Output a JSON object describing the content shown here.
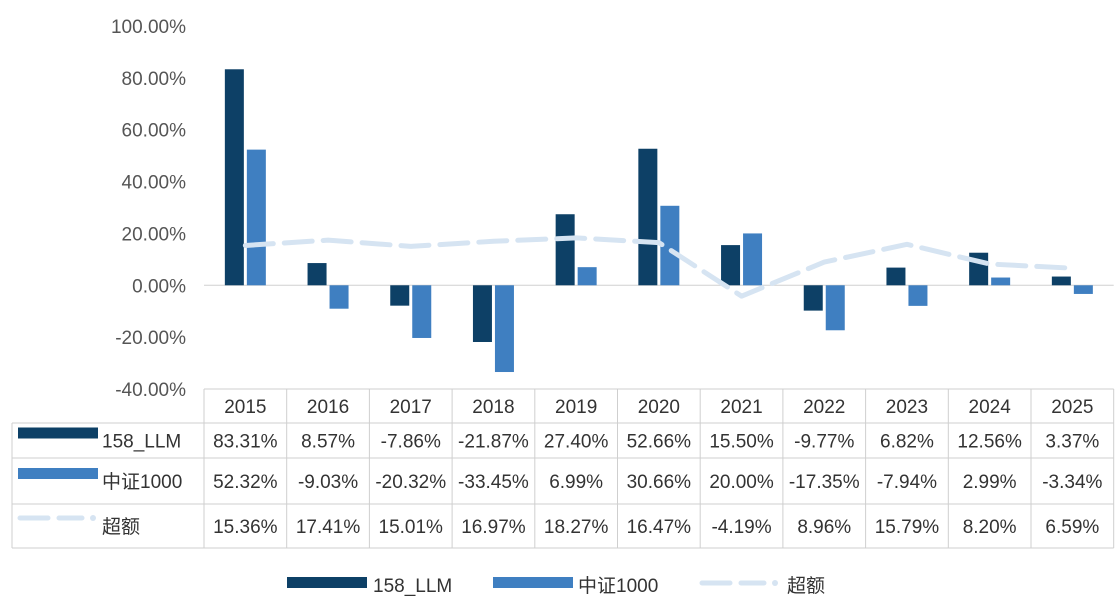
{
  "chart_data": {
    "type": "bar",
    "categories": [
      "2015",
      "2016",
      "2017",
      "2018",
      "2019",
      "2020",
      "2021",
      "2022",
      "2023",
      "2024",
      "2025"
    ],
    "series": [
      {
        "name": "158_LLM",
        "kind": "bar",
        "color": "#0d4066",
        "values": [
          83.31,
          8.57,
          -7.86,
          -21.87,
          27.4,
          52.66,
          15.5,
          -9.77,
          6.82,
          12.56,
          3.37
        ],
        "labels": [
          "83.31%",
          "8.57%",
          "-7.86%",
          "-21.87%",
          "27.40%",
          "52.66%",
          "15.50%",
          "-9.77%",
          "6.82%",
          "12.56%",
          "3.37%"
        ]
      },
      {
        "name": "中证1000",
        "kind": "bar",
        "color": "#3f7fc1",
        "values": [
          52.32,
          -9.03,
          -20.32,
          -33.45,
          6.99,
          30.66,
          20.0,
          -17.35,
          -7.94,
          2.99,
          -3.34
        ],
        "labels": [
          "52.32%",
          "-9.03%",
          "-20.32%",
          "-33.45%",
          "6.99%",
          "30.66%",
          "20.00%",
          "-17.35%",
          "-7.94%",
          "2.99%",
          "-3.34%"
        ]
      },
      {
        "name": "超额",
        "kind": "line",
        "color": "#d6e4f2",
        "values": [
          15.36,
          17.41,
          15.01,
          16.97,
          18.27,
          16.47,
          -4.19,
          8.96,
          15.79,
          8.2,
          6.59
        ],
        "labels": [
          "15.36%",
          "17.41%",
          "15.01%",
          "16.97%",
          "18.27%",
          "16.47%",
          "-4.19%",
          "8.96%",
          "15.79%",
          "8.20%",
          "6.59%"
        ]
      }
    ],
    "ylim": [
      -40,
      100
    ],
    "yticks": [
      100,
      80,
      60,
      40,
      20,
      0,
      -20,
      -40
    ],
    "ytick_labels": [
      "100.00%",
      "80.00%",
      "60.00%",
      "40.00%",
      "20.00%",
      "0.00%",
      "-20.00%",
      "-40.00%"
    ],
    "title": "",
    "xlabel": "",
    "ylabel": "",
    "grid": false,
    "legend_position": "bottom",
    "data_table": true
  }
}
